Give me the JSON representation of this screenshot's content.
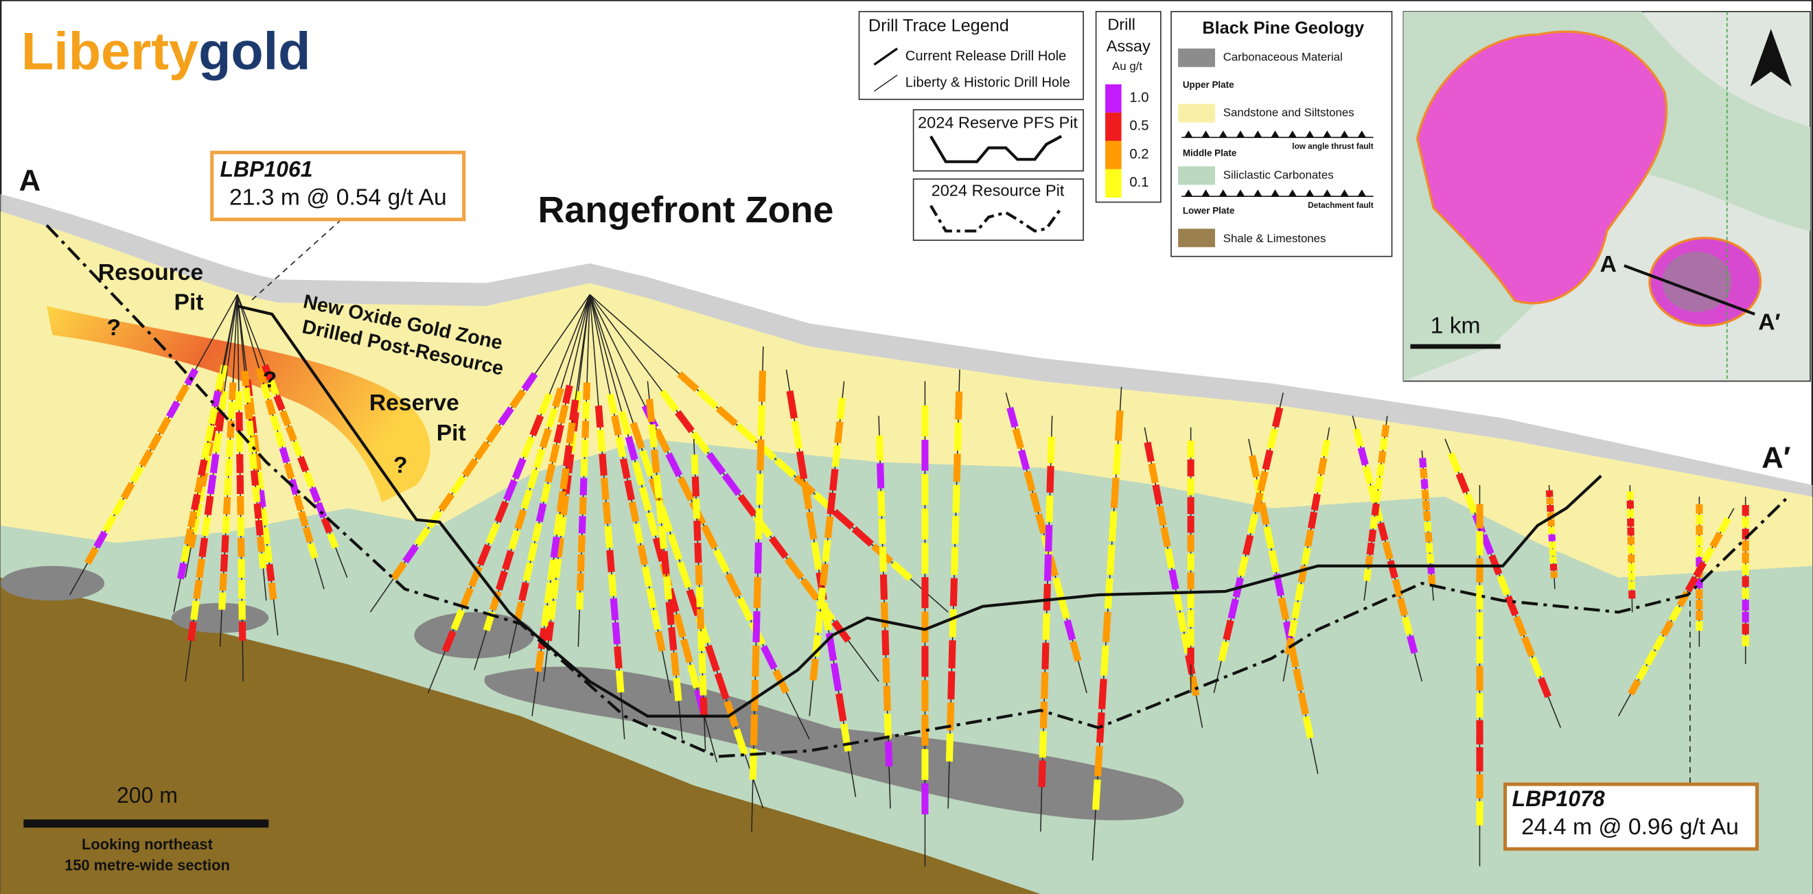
{
  "logo": {
    "part1": "Liberty",
    "part2": "gold"
  },
  "section": {
    "start": "A",
    "end": "A′",
    "title": "Rangefront Zone"
  },
  "callouts": [
    {
      "hole": "LBP1061",
      "intercept": "21.3 m @ 0.54 g/t Au"
    },
    {
      "hole": "LBP1078",
      "intercept": "24.4 m @ 0.96 g/t Au"
    }
  ],
  "annotations": {
    "resource_pit": [
      "Resource",
      "Pit"
    ],
    "oxide_zone": [
      "New Oxide Gold Zone",
      "Drilled Post-Resource"
    ],
    "reserve_pit": [
      "Reserve",
      "Pit"
    ],
    "unknown": [
      "?",
      "?",
      "?"
    ]
  },
  "drill_trace_legend": {
    "title": "Drill Trace Legend",
    "items": [
      "Current Release Drill Hole",
      "Liberty & Historic Drill Hole"
    ]
  },
  "pit_legend": [
    "2024 Reserve PFS Pit",
    "2024 Resource Pit"
  ],
  "assay_legend": {
    "title": [
      "Drill",
      "Assay"
    ],
    "unit": "Au g/t",
    "levels": [
      {
        "label": "1.0",
        "color": "#c21bff"
      },
      {
        "label": "0.5",
        "color": "#ee1c1c"
      },
      {
        "label": "0.2",
        "color": "#ff9a00"
      },
      {
        "label": "0.1",
        "color": "#ffff1a"
      }
    ]
  },
  "geology_legend": {
    "title": "Black Pine Geology",
    "carbonaceous": "Carbonaceous Material",
    "upper_plate": "Upper Plate",
    "sandstone": "Sandstone and Siltstones",
    "thrust_fault": "low angle thrust fault",
    "middle_plate": "Middle Plate",
    "carbonates": "Siliclastic Carbonates",
    "detachment": "Detachment fault",
    "lower_plate": "Lower Plate",
    "shale": "Shale & Limestones"
  },
  "inset": {
    "scale": "1 km",
    "start": "A",
    "end": "A′"
  },
  "scale_bar": {
    "label": "200 m",
    "notes": [
      "Looking northeast",
      "150 metre-wide section"
    ]
  }
}
